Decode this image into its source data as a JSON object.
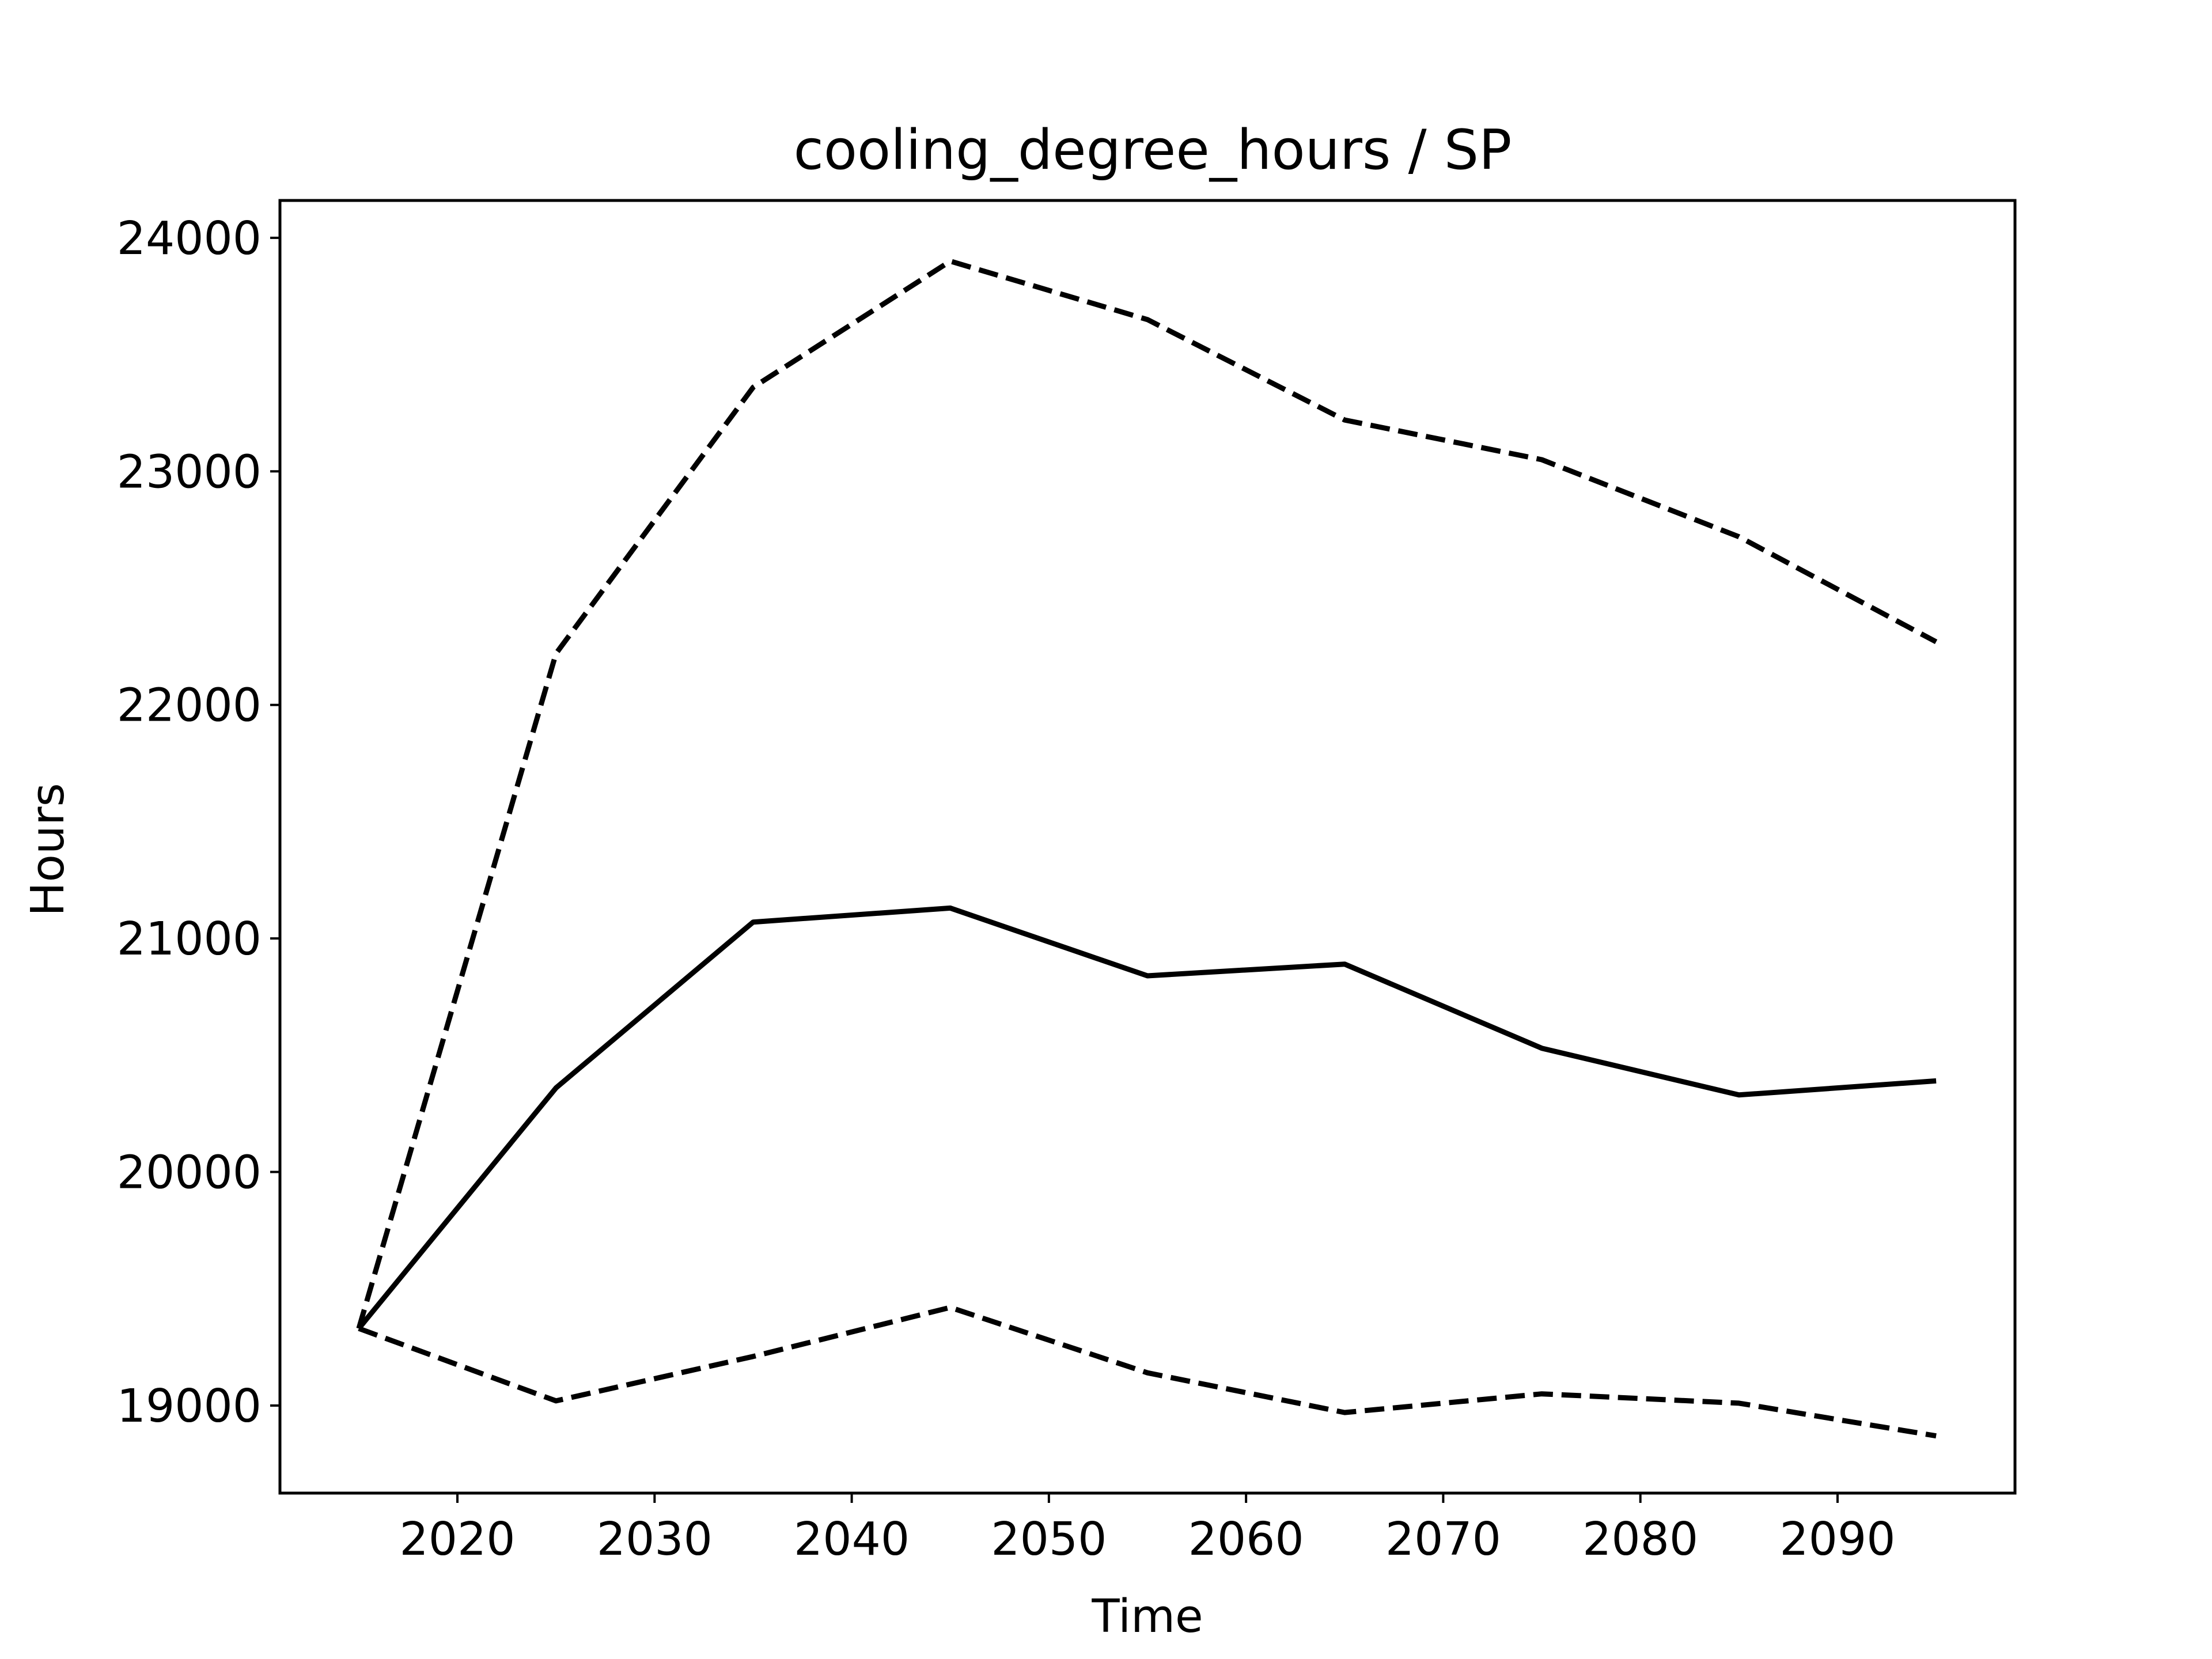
{
  "chart_data": {
    "type": "line",
    "title": "cooling_degree_hours / SP",
    "xlabel": "Time",
    "ylabel": "Hours",
    "xlim": [
      2011,
      2099
    ],
    "ylim": [
      18625,
      24160
    ],
    "xticks": [
      2020,
      2030,
      2040,
      2050,
      2060,
      2070,
      2080,
      2090
    ],
    "yticks": [
      19000,
      20000,
      21000,
      22000,
      23000,
      24000
    ],
    "grid": false,
    "legend": "none",
    "x": [
      2015,
      2025,
      2035,
      2045,
      2055,
      2065,
      2075,
      2085,
      2095
    ],
    "series": [
      {
        "style": "solid",
        "color": "#000000",
        "values": [
          19330,
          20360,
          21070,
          21130,
          20840,
          20890,
          20530,
          20330,
          20390
        ]
      },
      {
        "style": "dashed",
        "color": "#000000",
        "values": [
          19330,
          22220,
          23360,
          23900,
          23650,
          23220,
          23050,
          22720,
          22270
        ]
      },
      {
        "style": "dashed",
        "color": "#000000",
        "values": [
          19330,
          19020,
          19210,
          19420,
          19140,
          18970,
          19050,
          19010,
          18870
        ]
      }
    ]
  }
}
